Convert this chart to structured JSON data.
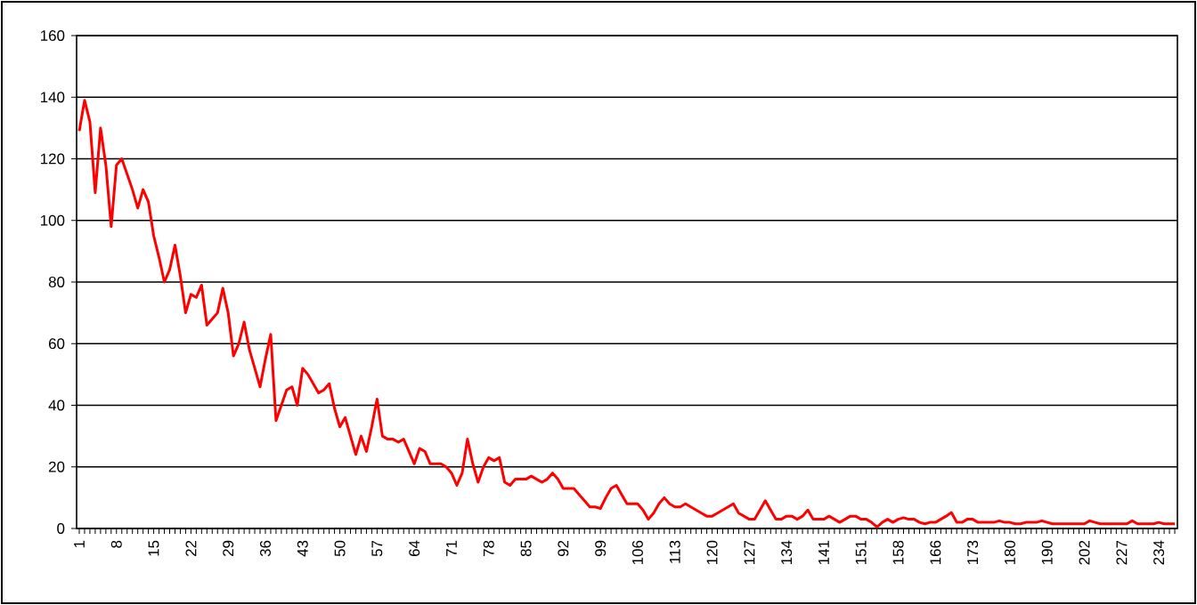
{
  "chart_data": {
    "type": "line",
    "color": "#ff0000",
    "grid": "y",
    "ylim": [
      0,
      160
    ],
    "yticks": [
      0,
      20,
      40,
      60,
      80,
      100,
      120,
      140,
      160
    ],
    "categories": [
      "1",
      null,
      null,
      null,
      null,
      null,
      null,
      "8",
      null,
      null,
      null,
      null,
      null,
      null,
      "15",
      null,
      null,
      null,
      null,
      null,
      null,
      "22",
      null,
      null,
      null,
      null,
      null,
      null,
      "29",
      null,
      null,
      null,
      null,
      null,
      null,
      "36",
      null,
      null,
      null,
      null,
      null,
      null,
      "43",
      null,
      null,
      null,
      null,
      null,
      null,
      "50",
      null,
      null,
      null,
      null,
      null,
      null,
      "57",
      null,
      null,
      null,
      null,
      null,
      null,
      "64",
      null,
      null,
      null,
      null,
      null,
      null,
      "71",
      null,
      null,
      null,
      null,
      null,
      null,
      "78",
      null,
      null,
      null,
      null,
      null,
      null,
      "85",
      null,
      null,
      null,
      null,
      null,
      null,
      "92",
      null,
      null,
      null,
      null,
      null,
      null,
      "99",
      null,
      null,
      null,
      null,
      null,
      null,
      "106",
      null,
      null,
      null,
      null,
      null,
      null,
      "113",
      null,
      null,
      null,
      null,
      null,
      null,
      "120",
      null,
      null,
      null,
      null,
      null,
      null,
      "127",
      null,
      null,
      null,
      null,
      null,
      null,
      "134",
      null,
      null,
      null,
      null,
      null,
      null,
      "141",
      null,
      null,
      null,
      null,
      null,
      null,
      "151",
      null,
      null,
      null,
      null,
      null,
      null,
      "158",
      null,
      null,
      null,
      null,
      null,
      null,
      "166",
      null,
      null,
      null,
      null,
      null,
      null,
      "173",
      null,
      null,
      null,
      null,
      null,
      null,
      "180",
      null,
      null,
      null,
      null,
      null,
      null,
      "190",
      null,
      null,
      null,
      null,
      null,
      null,
      "202",
      null,
      null,
      null,
      null,
      null,
      null,
      "227",
      null,
      null,
      null,
      null,
      null,
      null,
      "234",
      null,
      null,
      null
    ],
    "values": [
      129,
      139,
      132,
      109,
      130,
      118,
      98,
      118,
      120,
      115,
      110,
      104,
      110,
      106,
      95,
      88,
      80,
      84,
      92,
      82,
      70,
      76,
      75,
      79,
      66,
      68,
      70,
      78,
      70,
      56,
      60,
      67,
      58,
      52,
      46,
      55,
      63,
      35,
      40,
      45,
      46,
      40,
      52,
      50,
      47,
      44,
      45,
      47,
      39,
      33,
      36,
      30,
      24,
      30,
      25,
      33,
      42,
      30,
      29,
      29,
      28,
      29,
      25,
      21,
      26,
      25,
      21,
      21,
      21,
      20,
      18,
      14,
      18,
      29,
      21,
      15,
      20,
      23,
      22,
      23,
      15,
      14,
      16,
      16,
      16,
      17,
      16,
      15,
      16,
      18,
      16,
      13,
      13,
      13,
      11,
      9,
      7,
      7,
      6.5,
      10,
      13,
      14,
      11,
      8,
      8,
      8,
      6,
      3,
      5,
      8,
      10,
      8,
      7,
      7,
      8,
      7,
      6,
      5,
      4,
      4,
      5,
      6,
      7,
      8,
      5,
      4,
      3,
      3,
      6,
      9,
      6,
      3,
      3,
      4,
      4,
      3,
      4,
      6,
      3,
      3,
      3,
      4,
      3,
      2,
      3,
      4,
      4,
      3,
      3,
      2,
      0.5,
      2,
      3,
      2,
      3,
      3.5,
      3,
      3,
      2,
      1.5,
      2,
      2,
      3,
      4,
      5.2,
      2,
      2,
      3,
      3,
      2,
      2,
      2,
      2,
      2.5,
      2,
      2,
      1.5,
      1.5,
      2,
      2,
      2,
      2.5,
      2,
      1.5,
      1.5,
      1.5,
      1.5,
      1.5,
      1.5,
      1.5,
      2.5,
      2,
      1.5,
      1.5,
      1.5,
      1.5,
      1.5,
      1.5,
      2.5,
      1.5,
      1.5,
      1.5,
      1.5,
      2,
      1.5,
      1.5,
      1.5
    ]
  }
}
